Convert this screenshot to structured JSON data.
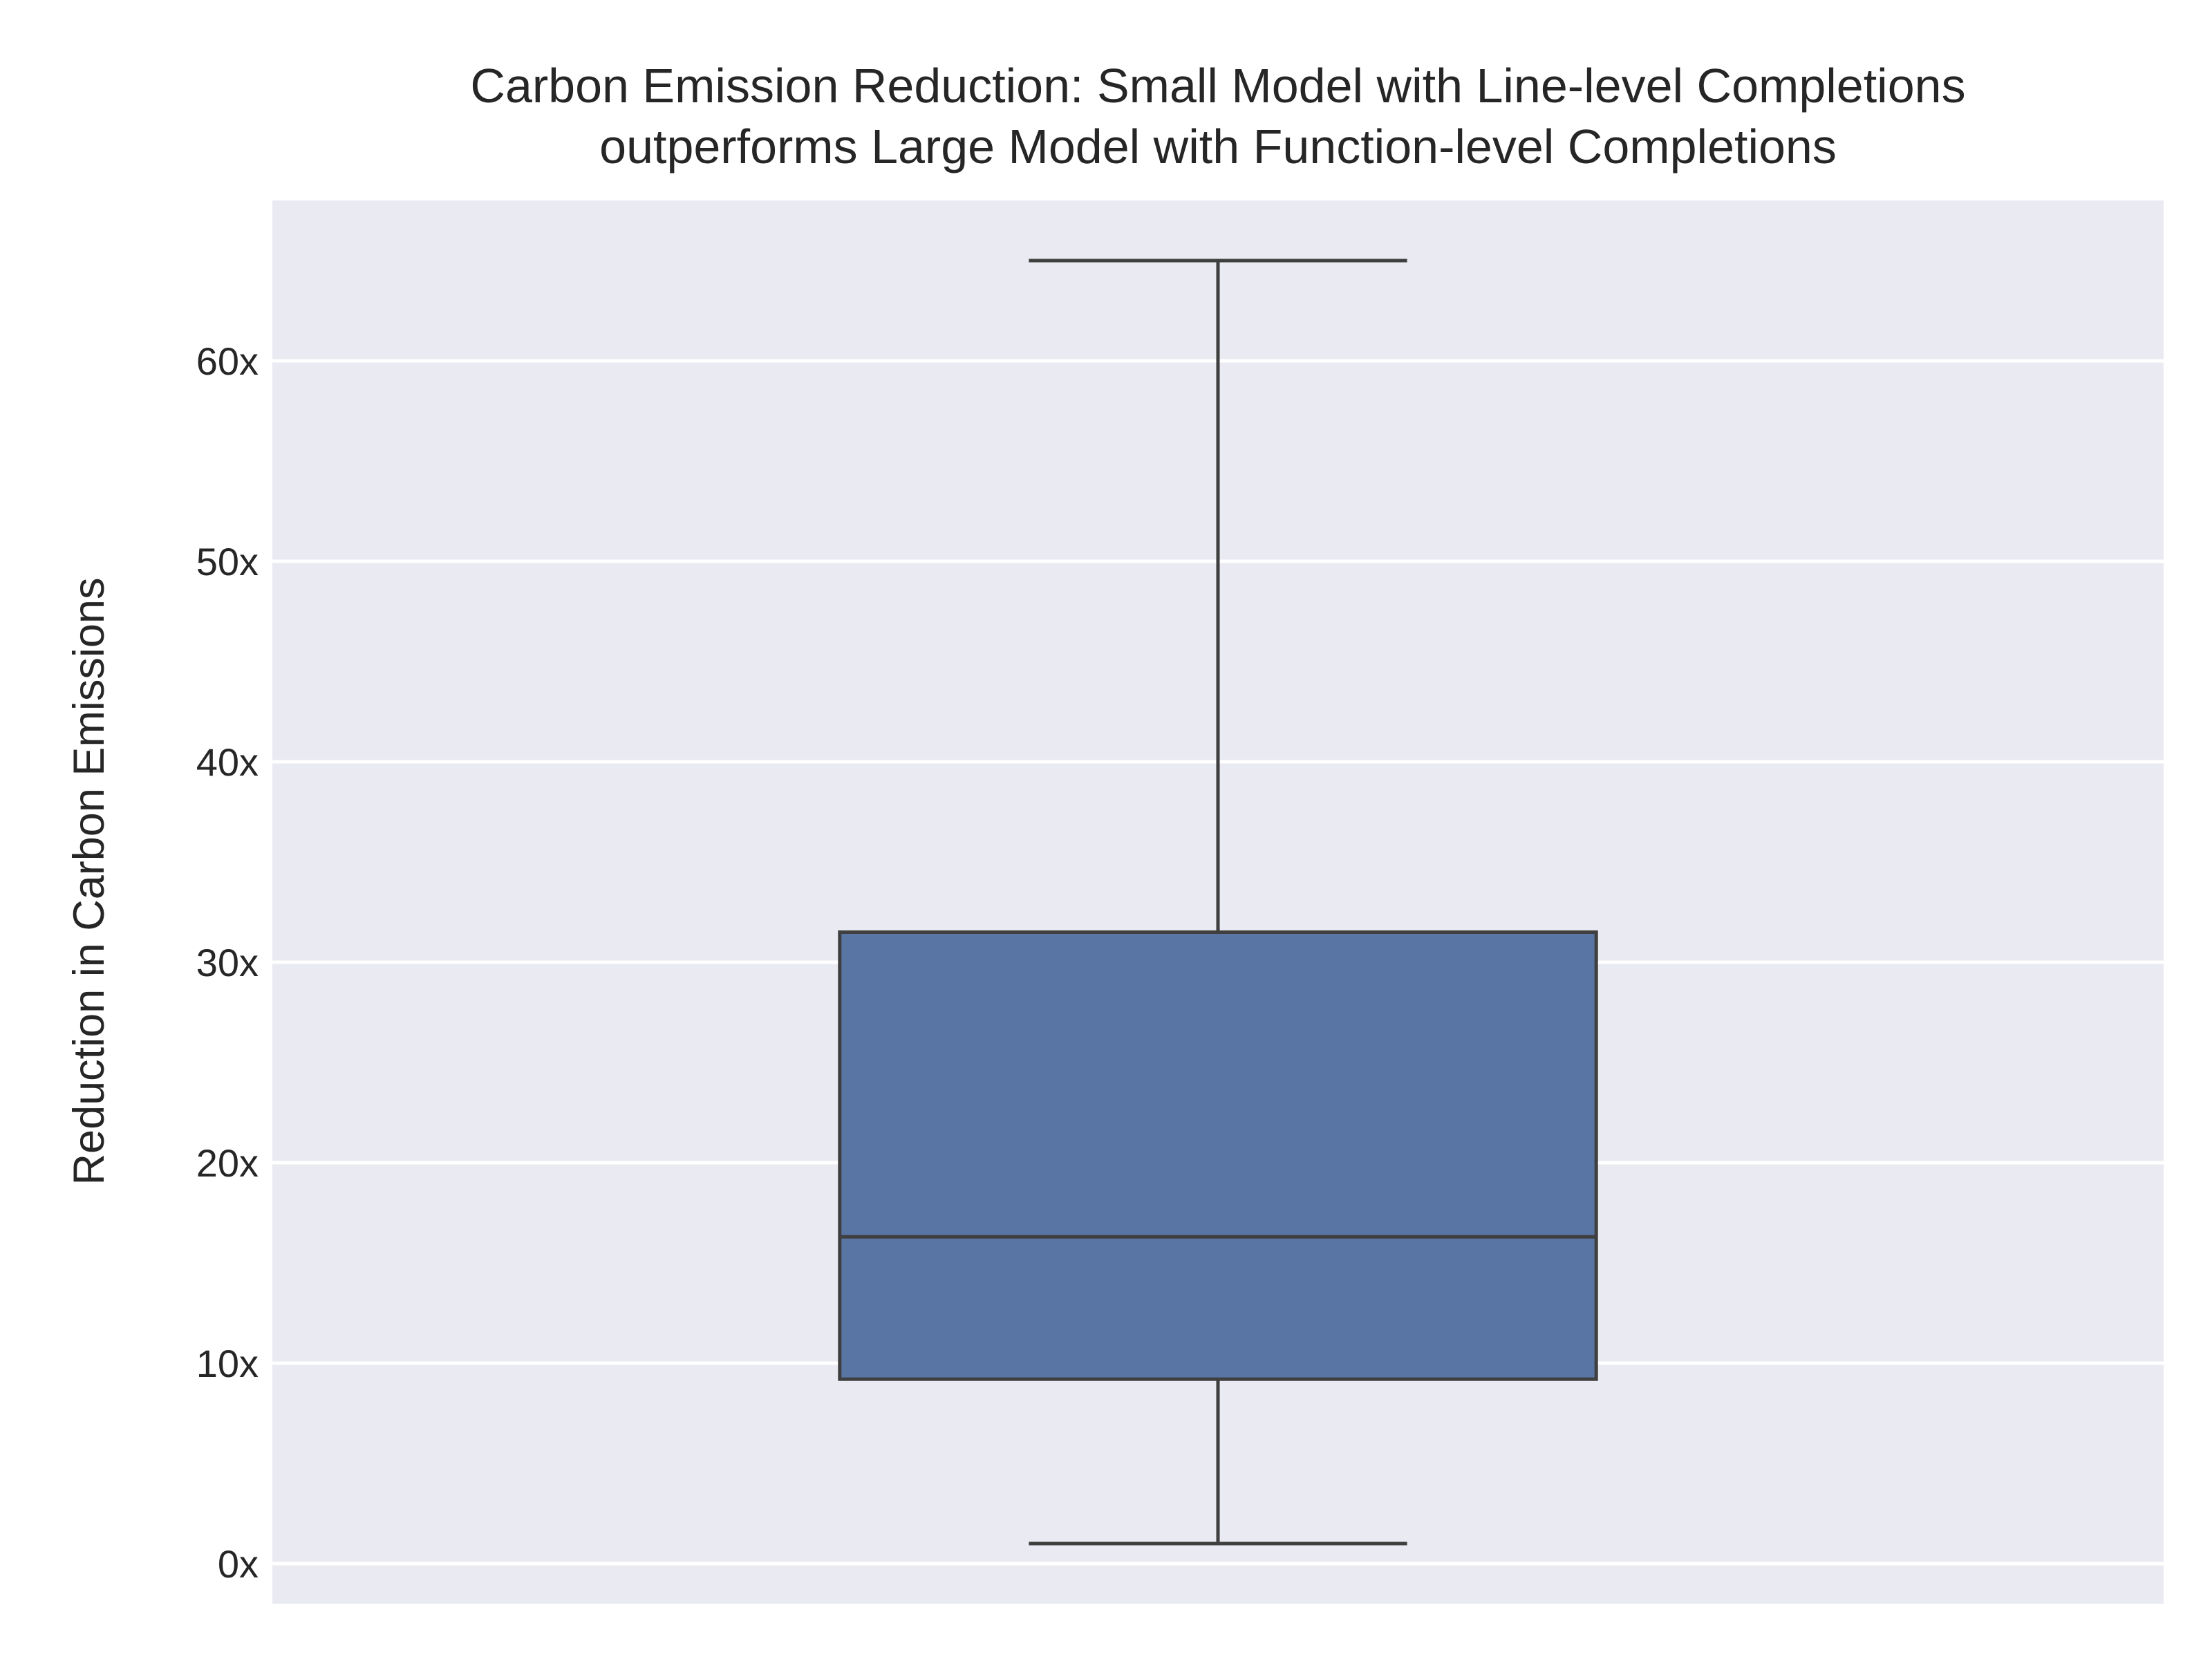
{
  "chart_data": {
    "type": "box",
    "title_lines": [
      "Carbon Emission Reduction: Small Model with Line-level Completions",
      "outperforms Large Model with Function-level Completions"
    ],
    "xlabel": "",
    "ylabel": "Reduction in Carbon Emissions",
    "ylim": [
      -2,
      68
    ],
    "yticks": [
      0,
      10,
      20,
      30,
      40,
      50,
      60
    ],
    "ytick_labels": [
      "0x",
      "10x",
      "20x",
      "30x",
      "40x",
      "50x",
      "60x"
    ],
    "grid": true,
    "series": [
      {
        "whisker_low": 1,
        "q1": 9.2,
        "median": 16.3,
        "q3": 31.5,
        "whisker_high": 65
      }
    ]
  },
  "colors": {
    "plot_background": "#eaeaf2",
    "grid": "#ffffff",
    "box_fill": "#5875a4",
    "box_edge": "#3f3f3f",
    "text": "#262626"
  }
}
